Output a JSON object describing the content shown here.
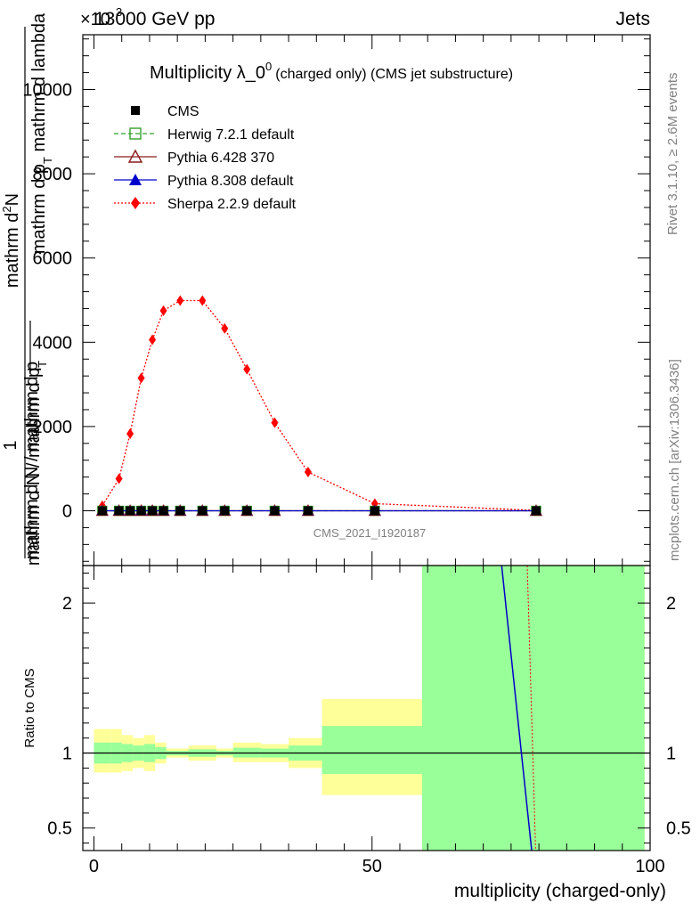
{
  "header": {
    "left_label": "13000 GeV pp",
    "right_label": "Jets",
    "exponent_label": "×10",
    "exponent_power": "3"
  },
  "side_labels": {
    "rivet": "Rivet 3.1.10, ≥ 2.6M events",
    "mcplots": "mcplots.cern.ch [arXiv:1306.3436]"
  },
  "watermark": "CMS_2021_I1920187",
  "chart_data": [
    {
      "type": "line",
      "title": "Multiplicity λ_0",
      "title_superscript": "0",
      "title_suffix": "(charged only) (CMS jet substructure)",
      "ylabel_numerator_top": "mathrm d",
      "ylabel_numerator_sup": "2",
      "ylabel_numerator_bottom": "N",
      "ylabel_denominator": "mathrm d p",
      "ylabel_denominator_sub": "T",
      "ylabel_denominator_suffix": " mathrm d lambda",
      "ylabel_prefix": "1",
      "ylabel_prefix_denominator": "mathrm d N / mathrm d p",
      "ylabel_prefix_denominator_sub": "T",
      "ylabel_bottom_line_a": "mathrm d N / mathrm d p",
      "xlim": [
        -2,
        100
      ],
      "ylim": [
        -1300,
        11300
      ],
      "y_ticks": [
        0,
        2000,
        4000,
        6000,
        8000,
        10000
      ],
      "y_tick_labels": [
        "0",
        "2000",
        "4000",
        "6000",
        "8000",
        "10000"
      ],
      "x_ticks": [
        0,
        50,
        100
      ],
      "legend_position": "top-left",
      "legend": [
        {
          "name": "CMS",
          "color": "#000000",
          "marker": "square-filled",
          "line": "none"
        },
        {
          "name": "Herwig 7.2.1 default",
          "color": "#33a02c",
          "marker": "square-open",
          "line": "dashed"
        },
        {
          "name": "Pythia 6.428 370",
          "color": "#8b1a1a",
          "marker": "triangle-open",
          "line": "solid"
        },
        {
          "name": "Pythia 8.308 default",
          "color": "#0000cc",
          "marker": "triangle-filled",
          "line": "solid"
        },
        {
          "name": "Sherpa 2.2.9 default",
          "color": "#ff0000",
          "marker": "diamond-filled",
          "line": "dotted"
        }
      ],
      "series": [
        {
          "name": "Sherpa 2.2.9 default",
          "x": [
            1.5,
            4.5,
            6.5,
            8.5,
            10.5,
            12.5,
            15.5,
            19.5,
            23.5,
            27.5,
            32.5,
            38.5,
            50.5,
            79.5
          ],
          "values": [
            120,
            760,
            1830,
            3150,
            4060,
            4750,
            4990,
            4990,
            4330,
            3360,
            2090,
            920,
            170,
            10
          ]
        },
        {
          "name": "Herwig 7.2.1 default",
          "x": [
            1.5,
            4.5,
            6.5,
            8.5,
            10.5,
            12.5,
            15.5,
            19.5,
            23.5,
            27.5,
            32.5,
            38.5,
            50.5,
            79.5
          ],
          "values": [
            0,
            0,
            0,
            0,
            0,
            0,
            0,
            0,
            0,
            0,
            0,
            0,
            0,
            0
          ]
        },
        {
          "name": "Pythia 6.428 370",
          "x": [
            1.5,
            4.5,
            6.5,
            8.5,
            10.5,
            12.5,
            15.5,
            19.5,
            23.5,
            27.5,
            32.5,
            38.5,
            50.5,
            79.5
          ],
          "values": [
            0,
            0,
            0,
            0,
            0,
            0,
            0,
            0,
            0,
            0,
            0,
            0,
            0,
            0
          ]
        },
        {
          "name": "Pythia 8.308 default",
          "x": [
            1.5,
            4.5,
            6.5,
            8.5,
            10.5,
            12.5,
            15.5,
            19.5,
            23.5,
            27.5,
            32.5,
            38.5,
            50.5,
            79.5
          ],
          "values": [
            0,
            0,
            0,
            0,
            0,
            0,
            0,
            0,
            0,
            0,
            0,
            0,
            0,
            0
          ]
        },
        {
          "name": "CMS",
          "x": [
            1.5,
            4.5,
            6.5,
            8.5,
            10.5,
            12.5,
            15.5,
            19.5,
            23.5,
            27.5,
            32.5,
            38.5,
            50.5,
            79.5
          ],
          "values": [
            0,
            0,
            0,
            0,
            0,
            0,
            0,
            0,
            0,
            0,
            0,
            0,
            0,
            0
          ]
        }
      ]
    },
    {
      "type": "area",
      "ylabel": "Ratio to CMS",
      "xlabel": "multiplicity (charged-only)",
      "xlim": [
        -2,
        100
      ],
      "ylim": [
        0.35,
        2.25
      ],
      "y_ticks": [
        0.5,
        1,
        2
      ],
      "y_tick_labels": [
        "0.5",
        "1",
        "2"
      ],
      "x_ticks": [
        0,
        50,
        100
      ],
      "x_tick_labels": [
        "0",
        "50",
        "100"
      ],
      "bands": [
        {
          "x0": 0,
          "x1": 3,
          "yellow": [
            0.87,
            1.16
          ],
          "green": [
            0.93,
            1.07
          ]
        },
        {
          "x0": 3,
          "x1": 5,
          "yellow": [
            0.87,
            1.16
          ],
          "green": [
            0.93,
            1.07
          ]
        },
        {
          "x0": 5,
          "x1": 7,
          "yellow": [
            0.88,
            1.12
          ],
          "green": [
            0.94,
            1.06
          ]
        },
        {
          "x0": 7,
          "x1": 9,
          "yellow": [
            0.9,
            1.1
          ],
          "green": [
            0.95,
            1.05
          ]
        },
        {
          "x0": 9,
          "x1": 11,
          "yellow": [
            0.88,
            1.12
          ],
          "green": [
            0.94,
            1.06
          ]
        },
        {
          "x0": 11,
          "x1": 13,
          "yellow": [
            0.93,
            1.07
          ],
          "green": [
            0.96,
            1.04
          ]
        },
        {
          "x0": 13,
          "x1": 17,
          "yellow": [
            0.97,
            1.03
          ],
          "green": [
            0.985,
            1.015
          ]
        },
        {
          "x0": 17,
          "x1": 22,
          "yellow": [
            0.95,
            1.05
          ],
          "green": [
            0.975,
            1.025
          ]
        },
        {
          "x0": 22,
          "x1": 25,
          "yellow": [
            0.97,
            1.03
          ],
          "green": [
            0.985,
            1.015
          ]
        },
        {
          "x0": 25,
          "x1": 30,
          "yellow": [
            0.94,
            1.07
          ],
          "green": [
            0.97,
            1.035
          ]
        },
        {
          "x0": 30,
          "x1": 35,
          "yellow": [
            0.94,
            1.06
          ],
          "green": [
            0.97,
            1.03
          ]
        },
        {
          "x0": 35,
          "x1": 41,
          "yellow": [
            0.9,
            1.1
          ],
          "green": [
            0.95,
            1.05
          ]
        },
        {
          "x0": 41,
          "x1": 59,
          "yellow": [
            0.72,
            1.36
          ],
          "green": [
            0.86,
            1.18
          ]
        },
        {
          "x0": 59,
          "x1": 99,
          "yellow": [
            0.35,
            2.25
          ],
          "green": [
            0.35,
            2.25
          ]
        }
      ],
      "lines": [
        {
          "name": "Pythia 8.308 default",
          "color": "#0000cc",
          "x": [
            73.3,
            78.7
          ],
          "values": [
            2.25,
            0.35
          ]
        },
        {
          "name": "Sherpa 2.2.9 default",
          "color": "#ff0000",
          "x": [
            77.9,
            79.4
          ],
          "values": [
            2.25,
            0.35
          ]
        }
      ]
    }
  ]
}
